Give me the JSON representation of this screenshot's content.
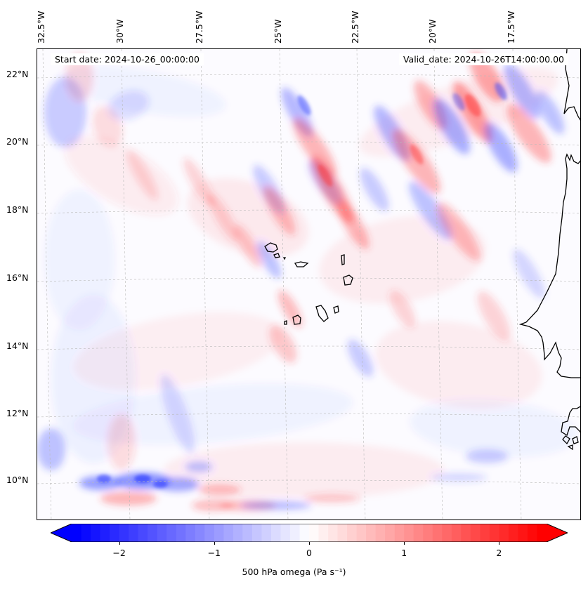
{
  "map": {
    "start_date": "Start date: 2024-10-26_00:00:00",
    "valid_date": "Valid_date: 2024-10-26T14:00:00.00",
    "lon_labels": [
      "32.5°W",
      "30°W",
      "27.5°W",
      "25°W",
      "22.5°W",
      "20°W",
      "17.5°W"
    ],
    "lat_labels": [
      "22°N",
      "20°N",
      "18°N",
      "16°N",
      "14°N",
      "12°N",
      "10°N"
    ],
    "extent": {
      "lon_min": -32.5,
      "lon_max": -16.2,
      "lat_min": 8.8,
      "lat_max": 22.7
    },
    "grid": true,
    "coastline_color": "#000000"
  },
  "colorbar": {
    "label": "500 hPa omega (Pa s⁻¹)",
    "ticks": [
      "−2",
      "−1",
      "0",
      "1",
      "2"
    ],
    "tick_values": [
      -2,
      -1,
      0,
      1,
      2
    ],
    "range": [
      -2.5,
      2.5
    ],
    "extend": "both",
    "cmap": "bwr",
    "colors": {
      "negative": "#0000ff",
      "zero": "#ffffff",
      "positive": "#ff0000"
    }
  }
}
